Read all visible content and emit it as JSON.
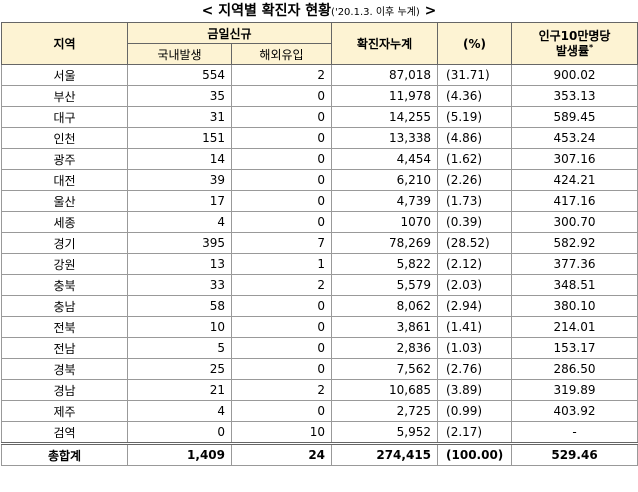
{
  "title": {
    "prefix": "<",
    "main": "지역별 확진자 현황",
    "note": "('20.1.3. 이후 누계)",
    "suffix": ">"
  },
  "table": {
    "header": {
      "region": "지역",
      "new": "금일신규",
      "domestic": "국내발생",
      "imported": "해외유입",
      "total": "확진자누계",
      "pct": "(%)",
      "rate_line1": "인구10만명당",
      "rate_line2": "발생률",
      "rate_mark": "*"
    },
    "rows": [
      [
        "서울",
        "554",
        "2",
        "87,018",
        "(31.71)",
        "900.02"
      ],
      [
        "부산",
        "35",
        "0",
        "11,978",
        "(4.36)",
        "353.13"
      ],
      [
        "대구",
        "31",
        "0",
        "14,255",
        "(5.19)",
        "589.45"
      ],
      [
        "인천",
        "151",
        "0",
        "13,338",
        "(4.86)",
        "453.24"
      ],
      [
        "광주",
        "14",
        "0",
        "4,454",
        "(1.62)",
        "307.16"
      ],
      [
        "대전",
        "39",
        "0",
        "6,210",
        "(2.26)",
        "424.21"
      ],
      [
        "울산",
        "17",
        "0",
        "4,739",
        "(1.73)",
        "417.16"
      ],
      [
        "세종",
        "4",
        "0",
        "1070",
        "(0.39)",
        "300.70"
      ],
      [
        "경기",
        "395",
        "7",
        "78,269",
        "(28.52)",
        "582.92"
      ],
      [
        "강원",
        "13",
        "1",
        "5,822",
        "(2.12)",
        "377.36"
      ],
      [
        "충북",
        "33",
        "2",
        "5,579",
        "(2.03)",
        "348.51"
      ],
      [
        "충남",
        "58",
        "0",
        "8,062",
        "(2.94)",
        "380.10"
      ],
      [
        "전북",
        "10",
        "0",
        "3,861",
        "(1.41)",
        "214.01"
      ],
      [
        "전남",
        "5",
        "0",
        "2,836",
        "(1.03)",
        "153.17"
      ],
      [
        "경북",
        "25",
        "0",
        "7,562",
        "(2.76)",
        "286.50"
      ],
      [
        "경남",
        "21",
        "2",
        "10,685",
        "(3.89)",
        "319.89"
      ],
      [
        "제주",
        "4",
        "0",
        "2,725",
        "(0.99)",
        "403.92"
      ],
      [
        "검역",
        "0",
        "10",
        "5,952",
        "(2.17)",
        "-"
      ]
    ],
    "total": [
      "총합계",
      "1,409",
      "24",
      "274,415",
      "(100.00)",
      "529.46"
    ]
  }
}
